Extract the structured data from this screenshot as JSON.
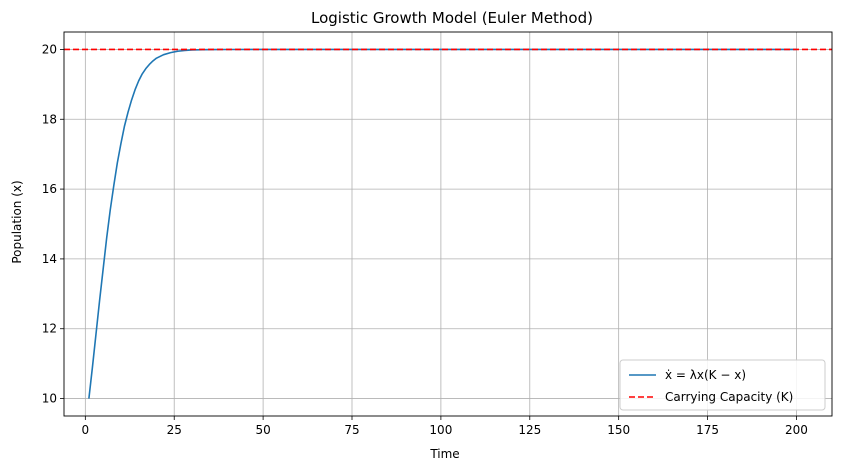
{
  "chart_data": {
    "type": "line",
    "title": "Logistic Growth Model (Euler Method)",
    "xlabel": "Time",
    "ylabel": "Population (x)",
    "xlim": [
      -6,
      210
    ],
    "ylim": [
      9.5,
      20.5
    ],
    "xticks": [
      "0",
      "25",
      "50",
      "75",
      "100",
      "125",
      "150",
      "175",
      "200"
    ],
    "yticks": [
      "10",
      "12",
      "14",
      "16",
      "18",
      "20"
    ],
    "grid": true,
    "legend_position": "bottom-right",
    "series": [
      {
        "name": "ẋ = λx(K − x)",
        "color": "#1f77b4",
        "style": "solid",
        "points": [
          [
            1,
            10.0
          ],
          [
            2,
            10.9
          ],
          [
            3,
            11.85
          ],
          [
            4,
            12.8
          ],
          [
            5,
            13.7
          ],
          [
            6,
            14.6
          ],
          [
            7,
            15.4
          ],
          [
            8,
            16.1
          ],
          [
            9,
            16.75
          ],
          [
            10,
            17.3
          ],
          [
            11,
            17.8
          ],
          [
            12,
            18.2
          ],
          [
            13,
            18.55
          ],
          [
            14,
            18.85
          ],
          [
            15,
            19.1
          ],
          [
            16,
            19.3
          ],
          [
            17,
            19.45
          ],
          [
            18,
            19.57
          ],
          [
            19,
            19.67
          ],
          [
            20,
            19.75
          ],
          [
            22,
            19.85
          ],
          [
            24,
            19.91
          ],
          [
            26,
            19.95
          ],
          [
            28,
            19.97
          ],
          [
            30,
            19.985
          ],
          [
            33,
            19.993
          ],
          [
            36,
            19.997
          ],
          [
            40,
            19.999
          ],
          [
            50,
            20.0
          ],
          [
            75,
            20.0
          ],
          [
            100,
            20.0
          ],
          [
            125,
            20.0
          ],
          [
            150,
            20.0
          ],
          [
            175,
            20.0
          ],
          [
            200,
            20.0
          ]
        ]
      },
      {
        "name": "Carrying Capacity (K)",
        "color": "#ff0000",
        "style": "dashed",
        "hline": 20
      }
    ]
  }
}
